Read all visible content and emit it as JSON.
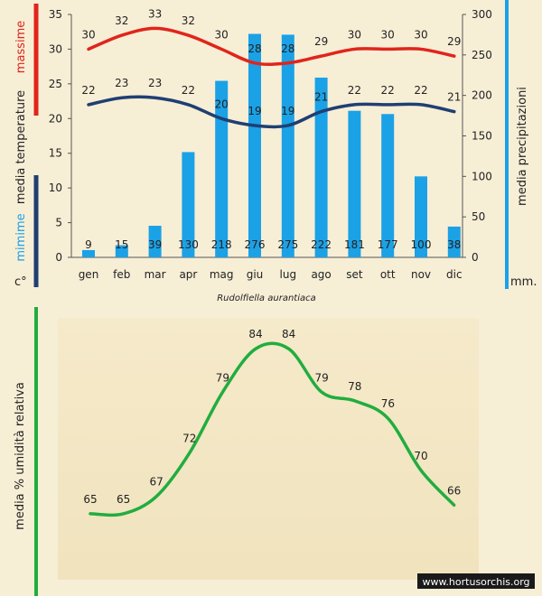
{
  "colors": {
    "background": "#f7eed6",
    "max_temp": "#e0251b",
    "min_temp": "#1f3f73",
    "precipitation": "#1ba1e6",
    "humidity": "#21ad3f",
    "text": "#222222",
    "watermark_bg": "#1a1a1a",
    "watermark_text": "#ffffff"
  },
  "watermark": "www.hortusorchis.org",
  "chart_data": [
    {
      "type": "bar+line",
      "title": "Rudolfiella aurantiaca",
      "categories": [
        "gen",
        "feb",
        "mar",
        "apr",
        "mag",
        "giu",
        "lug",
        "ago",
        "set",
        "ott",
        "nov",
        "dic"
      ],
      "series": [
        {
          "name": "massime",
          "axis": "left",
          "kind": "line",
          "values": [
            30,
            32,
            33,
            32,
            30,
            28,
            28,
            29,
            30,
            30,
            30,
            29
          ]
        },
        {
          "name": "mimime",
          "axis": "left",
          "kind": "line",
          "values": [
            22,
            23,
            23,
            22,
            20,
            19,
            19,
            21,
            22,
            22,
            22,
            21
          ]
        },
        {
          "name": "media precipitazioni",
          "axis": "right",
          "kind": "bar",
          "values": [
            9,
            15,
            39,
            130,
            218,
            276,
            275,
            222,
            181,
            177,
            100,
            38
          ]
        }
      ],
      "y_left": {
        "range": [
          0,
          35
        ],
        "ticks": [
          "0",
          "5",
          "10",
          "15",
          "20",
          "25",
          "30",
          "35"
        ],
        "label_max": "massime",
        "label_mid": "media  temperature",
        "label_min": "mimime",
        "unit": "c°"
      },
      "y_right": {
        "range": [
          0,
          300
        ],
        "ticks": [
          "0",
          "50",
          "100",
          "150",
          "200",
          "250",
          "300"
        ],
        "label": "media  precipitazioni",
        "unit": "mm."
      }
    },
    {
      "type": "line",
      "title": "",
      "categories": [
        "gen",
        "feb",
        "mar",
        "apr",
        "mag",
        "giu",
        "lug",
        "ago",
        "set",
        "ott",
        "nov",
        "dic"
      ],
      "series": [
        {
          "name": "media % umidità relativa",
          "values": [
            65,
            65,
            67,
            72,
            79,
            84,
            84,
            79,
            78,
            76,
            70,
            66
          ]
        }
      ],
      "ylabel": "media %  umidità relativa",
      "ylim": [
        60,
        86
      ],
      "grid": false
    }
  ]
}
